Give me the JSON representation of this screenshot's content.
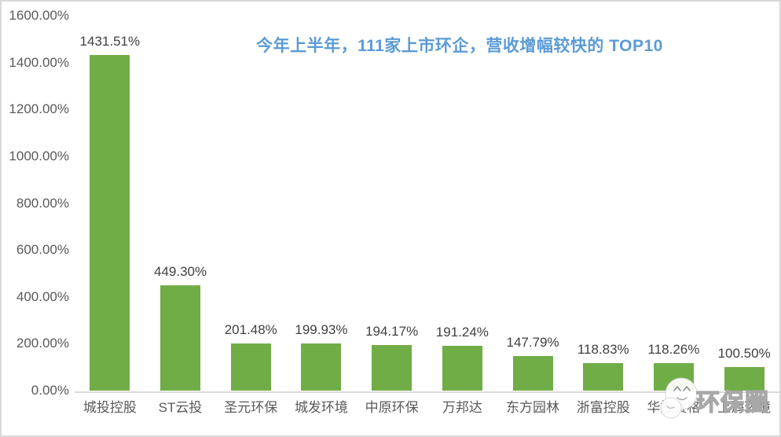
{
  "chart_data": {
    "type": "bar",
    "title": "今年上半年，111家上市环企，营收增幅较快的 TOP10",
    "title_color": "#5B9BD5",
    "categories": [
      "城投控股",
      "ST云投",
      "圣元环保",
      "城发环境",
      "中原环保",
      "万邦达",
      "东方园林",
      "浙富控股",
      "华控赛格",
      "上海环境"
    ],
    "values": [
      1431.51,
      449.3,
      201.48,
      199.93,
      194.17,
      191.24,
      147.79,
      118.83,
      118.26,
      100.5
    ],
    "value_labels": [
      "1431.51%",
      "449.30%",
      "201.48%",
      "199.93%",
      "194.17%",
      "191.24%",
      "147.79%",
      "118.83%",
      "118.26%",
      "100.50%"
    ],
    "xlabel": "",
    "ylabel": "",
    "ylim": [
      0,
      1600
    ],
    "ytick_labels": [
      "0.00%",
      "200.00%",
      "400.00%",
      "600.00%",
      "800.00%",
      "1000.00%",
      "1200.00%",
      "1400.00%",
      "1600.00%"
    ],
    "bar_color": "#70AD47",
    "axis_text_color": "#595959",
    "data_label_color": "#404040",
    "axis_line_color": "#d9d9d9",
    "grid": false,
    "legend": "none"
  },
  "watermark": {
    "text": "环保圈",
    "logo": "mascot-face-icon"
  }
}
